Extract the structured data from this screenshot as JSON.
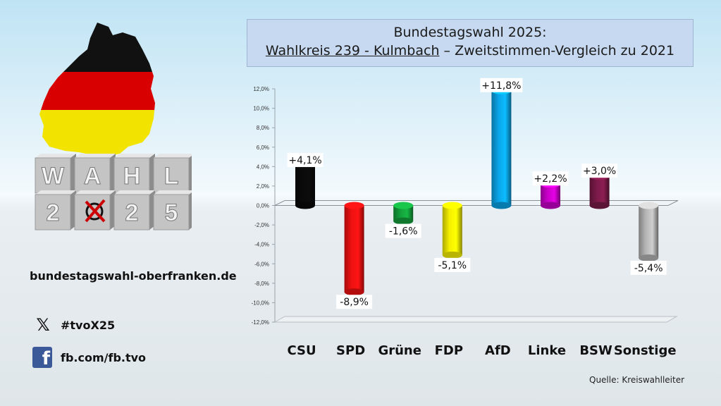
{
  "title": {
    "line1": "Bundestagswahl 2025:",
    "line2_underlined": "Wahlkreis 239 - Kulmbach",
    "line2_rest": " – Zweitstimmen-Vergleich zu 2021"
  },
  "logo": {
    "blocks_top": [
      "W",
      "A",
      "H",
      "L"
    ],
    "blocks_bottom": [
      "2",
      "",
      "2",
      "5"
    ]
  },
  "links": {
    "website": "bundestagswahl-oberfranken.de",
    "hashtag": "#tvoX25",
    "facebook": "fb.com/fb.tvo"
  },
  "source": "Quelle: Kreiswahlleiter",
  "chart_data": {
    "type": "bar",
    "categories": [
      "CSU",
      "SPD",
      "Grüne",
      "FDP",
      "AfD",
      "Linke",
      "BSW",
      "Sonstige"
    ],
    "values": [
      4.1,
      -8.9,
      -1.6,
      -5.1,
      11.8,
      2.2,
      3.0,
      -5.4
    ],
    "data_labels": [
      "+4,1%",
      "-8,9%",
      "-1,6%",
      "-5,1%",
      "+11,8%",
      "+2,2%",
      "+3,0%",
      "-5,4%"
    ],
    "colors": [
      "#0a0a0a",
      "#ee1111",
      "#14a03c",
      "#f5f000",
      "#0aa4e8",
      "#c800c8",
      "#7a1a48",
      "#b4b4b4"
    ],
    "ylim": [
      -12,
      12
    ],
    "yticks": [
      "12,0%",
      "10,0%",
      "8,0%",
      "6,0%",
      "4,0%",
      "2,0%",
      "0,0%",
      "-2,0%",
      "-4,0%",
      "-6,0%",
      "-8,0%",
      "-10,0%",
      "-12,0%"
    ],
    "grid": false,
    "legend": "none"
  }
}
